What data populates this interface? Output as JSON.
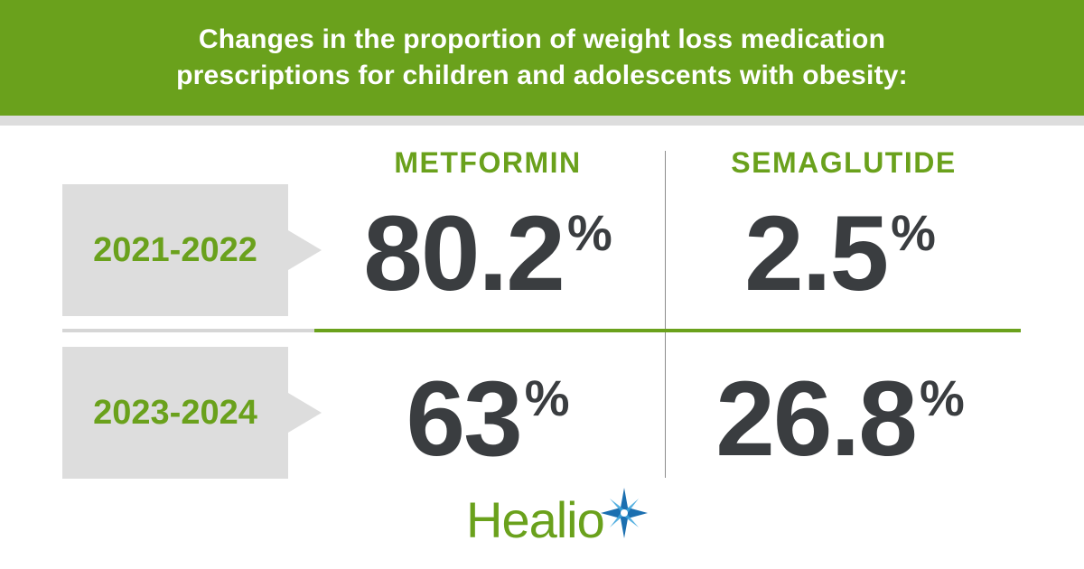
{
  "header": {
    "title": "Changes in the proportion of weight loss medication prescriptions for children and adolescents with obesity:"
  },
  "colors": {
    "green": "#6aa11c",
    "dark_text": "#3a3d40",
    "label_bg": "#dddddd",
    "logo_blue": "#1b6fb0"
  },
  "chart_data": {
    "type": "table",
    "title": "Changes in the proportion of weight loss medication prescriptions for children and adolescents with obesity:",
    "columns": [
      "METFORMIN",
      "SEMAGLUTIDE"
    ],
    "rows": [
      {
        "period": "2021-2022",
        "values": [
          "80.2",
          "2.5"
        ]
      },
      {
        "period": "2023-2024",
        "values": [
          "63",
          "26.8"
        ]
      }
    ],
    "unit": "%"
  },
  "logo": {
    "text": "Healio",
    "icon": "star-burst-icon"
  }
}
